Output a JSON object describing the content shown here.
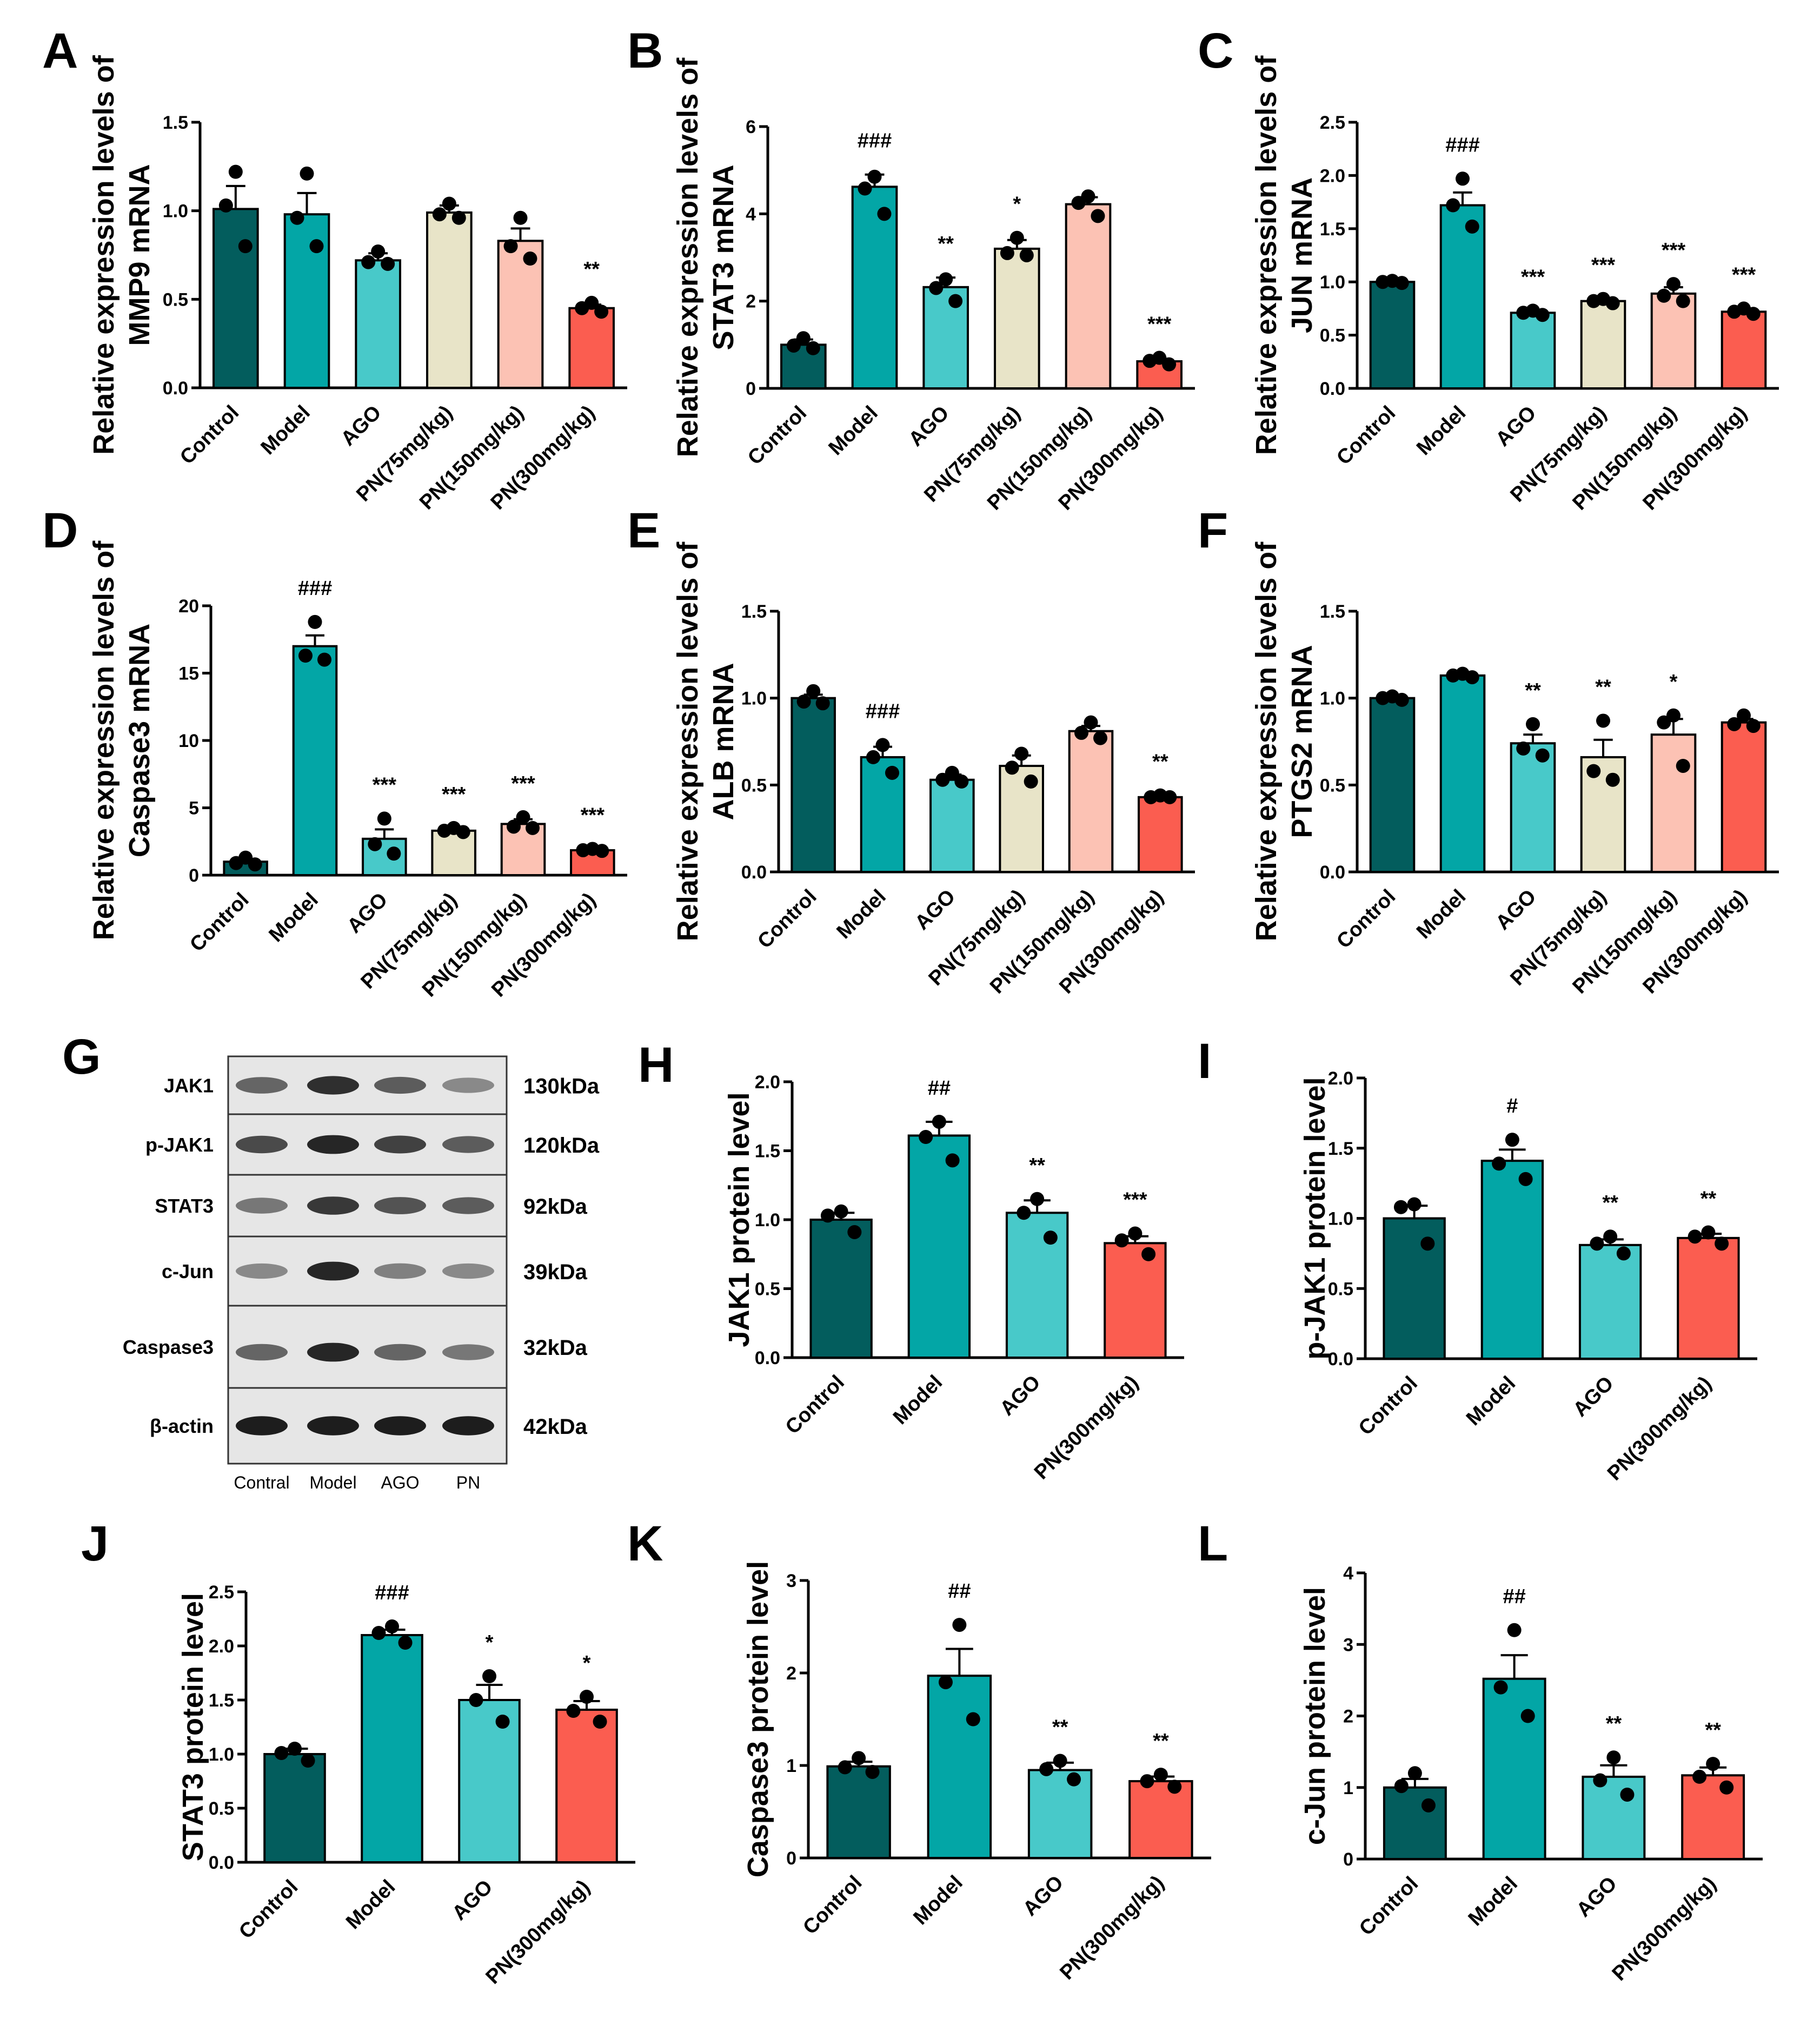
{
  "colors": {
    "Control": "#035d5d",
    "Model": "#03a6a6",
    "AGO": "#48c9c9",
    "PN(75mg/kg)": "#e8e4c8",
    "PN(150mg/kg)": "#fcc2b4",
    "PN(300mg/kg)": "#fb5d50",
    "PN": "#fb5d50"
  },
  "chart_data": [
    {
      "id": "A",
      "type": "bar",
      "ylabel_lines": [
        "Relative expression levels of",
        "MMP9 mRNA"
      ],
      "categories": [
        "Control",
        "Model",
        "AGO",
        "PN(75mg/kg)",
        "PN(150mg/kg)",
        "PN(300mg/kg)"
      ],
      "values": [
        1.01,
        0.98,
        0.72,
        0.99,
        0.83,
        0.45
      ],
      "errors": [
        0.13,
        0.12,
        0.04,
        0.04,
        0.07,
        0.02
      ],
      "points": [
        [
          1.22,
          1.03,
          0.8
        ],
        [
          1.21,
          0.96,
          0.8
        ],
        [
          0.77,
          0.71,
          0.7
        ],
        [
          1.04,
          0.98,
          0.96
        ],
        [
          0.96,
          0.8,
          0.73
        ],
        [
          0.48,
          0.45,
          0.43
        ]
      ],
      "significance": [
        "",
        "",
        "",
        "",
        "",
        "**"
      ],
      "ylim": [
        0,
        1.5
      ],
      "yticks": [
        "0.0",
        "0.5",
        "1.0",
        "1.5"
      ]
    },
    {
      "id": "B",
      "type": "bar",
      "ylabel_lines": [
        "Relative expression  levels of",
        "STAT3 mRNA"
      ],
      "categories": [
        "Control",
        "Model",
        "AGO",
        "PN(75mg/kg)",
        "PN(150mg/kg)",
        "PN(300mg/kg)"
      ],
      "values": [
        1.0,
        4.62,
        2.32,
        3.2,
        4.22,
        0.62
      ],
      "errors": [
        0.12,
        0.28,
        0.22,
        0.2,
        0.16,
        0.06
      ],
      "points": [
        [
          1.15,
          0.98,
          0.92
        ],
        [
          4.85,
          4.58,
          4.0
        ],
        [
          2.5,
          2.3,
          2.0
        ],
        [
          3.45,
          3.1,
          3.05
        ],
        [
          4.4,
          4.25,
          3.95
        ],
        [
          0.7,
          0.63,
          0.55
        ]
      ],
      "significance": [
        "",
        "###",
        "**",
        "*",
        "",
        "***"
      ],
      "ylim": [
        0,
        6
      ],
      "yticks": [
        "0",
        "2",
        "4",
        "6"
      ]
    },
    {
      "id": "C",
      "type": "bar",
      "ylabel_lines": [
        "Relative expression levels of",
        "JUN mRNA"
      ],
      "categories": [
        "Control",
        "Model",
        "AGO",
        "PN(75mg/kg)",
        "PN(150mg/kg)",
        "PN(300mg/kg)"
      ],
      "values": [
        1.0,
        1.72,
        0.71,
        0.82,
        0.89,
        0.72
      ],
      "errors": [
        0.01,
        0.12,
        0.02,
        0.02,
        0.06,
        0.02
      ],
      "points": [
        [
          1.01,
          1.0,
          0.99
        ],
        [
          1.97,
          1.72,
          1.52
        ],
        [
          0.73,
          0.71,
          0.69
        ],
        [
          0.84,
          0.82,
          0.8
        ],
        [
          0.98,
          0.87,
          0.82
        ],
        [
          0.75,
          0.72,
          0.7
        ]
      ],
      "significance": [
        "",
        "###",
        "***",
        "***",
        "***",
        "***"
      ],
      "ylim": [
        0,
        2.5
      ],
      "yticks": [
        "0.0",
        "0.5",
        "1.0",
        "1.5",
        "2.0",
        "2.5"
      ]
    },
    {
      "id": "D",
      "type": "bar",
      "ylabel_lines": [
        "Relative expression  levels of",
        "Caspase3 mRNA"
      ],
      "categories": [
        "Control",
        "Model",
        "AGO",
        "PN(75mg/kg)",
        "PN(150mg/kg)",
        "PN(300mg/kg)"
      ],
      "values": [
        1.0,
        17.0,
        2.7,
        3.3,
        3.8,
        1.85
      ],
      "errors": [
        0.2,
        0.8,
        0.7,
        0.15,
        0.35,
        0.1
      ],
      "points": [
        [
          1.3,
          0.9,
          0.8
        ],
        [
          18.8,
          16.3,
          16.0
        ],
        [
          4.2,
          2.3,
          1.6
        ],
        [
          3.5,
          3.3,
          3.2
        ],
        [
          4.3,
          3.6,
          3.5
        ],
        [
          1.95,
          1.85,
          1.8
        ]
      ],
      "significance": [
        "",
        "###",
        "***",
        "***",
        "***",
        "***"
      ],
      "ylim": [
        0,
        20
      ],
      "yticks": [
        "0",
        "5",
        "10",
        "15",
        "20"
      ]
    },
    {
      "id": "E",
      "type": "bar",
      "ylabel_lines": [
        "Relative expression  levels of",
        "ALB mRNA"
      ],
      "categories": [
        "Control",
        "Model",
        "AGO",
        "PN(75mg/kg)",
        "PN(150mg/kg)",
        "PN(300mg/kg)"
      ],
      "values": [
        1.0,
        0.66,
        0.53,
        0.61,
        0.81,
        0.43
      ],
      "errors": [
        0.02,
        0.06,
        0.03,
        0.06,
        0.03,
        0.01
      ],
      "points": [
        [
          1.04,
          0.98,
          0.97
        ],
        [
          0.73,
          0.66,
          0.57
        ],
        [
          0.57,
          0.53,
          0.52
        ],
        [
          0.68,
          0.6,
          0.52
        ],
        [
          0.86,
          0.8,
          0.77
        ],
        [
          0.44,
          0.43,
          0.43
        ]
      ],
      "significance": [
        "",
        "###",
        "",
        "",
        "",
        "**"
      ],
      "ylim": [
        0,
        1.5
      ],
      "yticks": [
        "0.0",
        "0.5",
        "1.0",
        "1.5"
      ]
    },
    {
      "id": "F",
      "type": "bar",
      "ylabel_lines": [
        "Relative expression  levels of",
        "PTGS2 mRNA"
      ],
      "categories": [
        "Control",
        "Model",
        "AGO",
        "PN(75mg/kg)",
        "PN(150mg/kg)",
        "PN(300mg/kg)"
      ],
      "values": [
        1.0,
        1.13,
        0.74,
        0.66,
        0.79,
        0.86
      ],
      "errors": [
        0.01,
        0.01,
        0.05,
        0.1,
        0.09,
        0.02
      ],
      "points": [
        [
          1.01,
          1.0,
          0.99
        ],
        [
          1.14,
          1.13,
          1.12
        ],
        [
          0.85,
          0.71,
          0.67
        ],
        [
          0.87,
          0.58,
          0.53
        ],
        [
          0.9,
          0.86,
          0.61
        ],
        [
          0.9,
          0.85,
          0.84
        ]
      ],
      "significance": [
        "",
        "",
        "**",
        "**",
        "*",
        ""
      ],
      "ylim": [
        0,
        1.5
      ],
      "yticks": [
        "0.0",
        "0.5",
        "1.0",
        "1.5"
      ]
    },
    {
      "id": "H",
      "type": "bar",
      "ylabel_lines": [
        "JAK1 protein level"
      ],
      "categories": [
        "Control",
        "Model",
        "AGO",
        "PN(300mg/kg)"
      ],
      "values": [
        1.0,
        1.61,
        1.05,
        0.83
      ],
      "errors": [
        0.05,
        0.1,
        0.09,
        0.05
      ],
      "points": [
        [
          1.06,
          1.03,
          0.91
        ],
        [
          1.71,
          1.6,
          1.43
        ],
        [
          1.15,
          1.05,
          0.87
        ],
        [
          0.9,
          0.85,
          0.75
        ]
      ],
      "significance": [
        "",
        "##",
        "**",
        "***"
      ],
      "ylim": [
        0,
        2.0
      ],
      "yticks": [
        "0.0",
        "0.5",
        "1.0",
        "1.5",
        "2.0"
      ]
    },
    {
      "id": "I",
      "type": "bar",
      "ylabel_lines": [
        "p-JAK1 protein level"
      ],
      "categories": [
        "Control",
        "Model",
        "AGO",
        "PN(300mg/kg)"
      ],
      "values": [
        1.0,
        1.41,
        0.81,
        0.86
      ],
      "errors": [
        0.09,
        0.08,
        0.04,
        0.03
      ],
      "points": [
        [
          1.1,
          1.08,
          0.82
        ],
        [
          1.56,
          1.39,
          1.28
        ],
        [
          0.87,
          0.82,
          0.75
        ],
        [
          0.9,
          0.87,
          0.82
        ]
      ],
      "significance": [
        "",
        "#",
        "**",
        "**"
      ],
      "ylim": [
        0,
        2.0
      ],
      "yticks": [
        "0.0",
        "0.5",
        "1.0",
        "1.5",
        "2.0"
      ]
    },
    {
      "id": "J",
      "type": "bar",
      "ylabel_lines": [
        "STAT3 protein level"
      ],
      "categories": [
        "Control",
        "Model",
        "AGO",
        "PN(300mg/kg)"
      ],
      "values": [
        1.0,
        2.1,
        1.5,
        1.41
      ],
      "errors": [
        0.05,
        0.05,
        0.14,
        0.08
      ],
      "points": [
        [
          1.05,
          1.01,
          0.94
        ],
        [
          2.18,
          2.12,
          2.03
        ],
        [
          1.72,
          1.5,
          1.3
        ],
        [
          1.53,
          1.4,
          1.3
        ]
      ],
      "significance": [
        "",
        "###",
        "*",
        "*"
      ],
      "ylim": [
        0,
        2.5
      ],
      "yticks": [
        "0.0",
        "0.5",
        "1.0",
        "1.5",
        "2.0",
        "2.5"
      ]
    },
    {
      "id": "K",
      "type": "bar",
      "ylabel_lines": [
        "Caspase3 protein level"
      ],
      "categories": [
        "Control",
        "Model",
        "AGO",
        "PN(300mg/kg)"
      ],
      "values": [
        0.99,
        1.97,
        0.95,
        0.83
      ],
      "errors": [
        0.05,
        0.29,
        0.08,
        0.05
      ],
      "points": [
        [
          1.08,
          0.98,
          0.93
        ],
        [
          2.52,
          1.9,
          1.5
        ],
        [
          1.05,
          0.96,
          0.85
        ],
        [
          0.9,
          0.83,
          0.77
        ]
      ],
      "significance": [
        "",
        "##",
        "**",
        "**"
      ],
      "ylim": [
        0,
        3
      ],
      "yticks": [
        "0",
        "1",
        "2",
        "3"
      ]
    },
    {
      "id": "L",
      "type": "bar",
      "ylabel_lines": [
        "c-Jun protein level"
      ],
      "categories": [
        "Control",
        "Model",
        "AGO",
        "PN(300mg/kg)"
      ],
      "values": [
        1.0,
        2.52,
        1.15,
        1.17
      ],
      "errors": [
        0.12,
        0.33,
        0.16,
        0.11
      ],
      "points": [
        [
          1.2,
          1.02,
          0.75
        ],
        [
          3.2,
          2.4,
          2.0
        ],
        [
          1.42,
          1.1,
          0.9
        ],
        [
          1.33,
          1.15,
          1.0
        ]
      ],
      "significance": [
        "",
        "##",
        "**",
        "**"
      ],
      "ylim": [
        0,
        4
      ],
      "yticks": [
        "0",
        "1",
        "2",
        "3",
        "4"
      ]
    }
  ],
  "blot": {
    "id": "G",
    "rows": [
      {
        "label": "JAK1",
        "kda": "130kDa",
        "intensities": [
          0.55,
          0.85,
          0.6,
          0.35
        ]
      },
      {
        "label": "p-JAK1",
        "kda": "120kDa",
        "intensities": [
          0.7,
          0.9,
          0.75,
          0.6
        ]
      },
      {
        "label": "STAT3",
        "kda": "92kDa",
        "intensities": [
          0.45,
          0.8,
          0.65,
          0.6
        ]
      },
      {
        "label": "c-Jun",
        "kda": "39kDa",
        "intensities": [
          0.35,
          0.9,
          0.4,
          0.35
        ]
      },
      {
        "label": "Caspase3",
        "kda": "32kDa",
        "intensities": [
          0.55,
          0.9,
          0.55,
          0.45
        ]
      },
      {
        "label": "β-actin",
        "kda": "42kDa",
        "intensities": [
          0.95,
          0.95,
          0.95,
          0.95
        ]
      }
    ],
    "lanes": [
      "Contral",
      "Model",
      "AGO",
      "PN"
    ]
  }
}
